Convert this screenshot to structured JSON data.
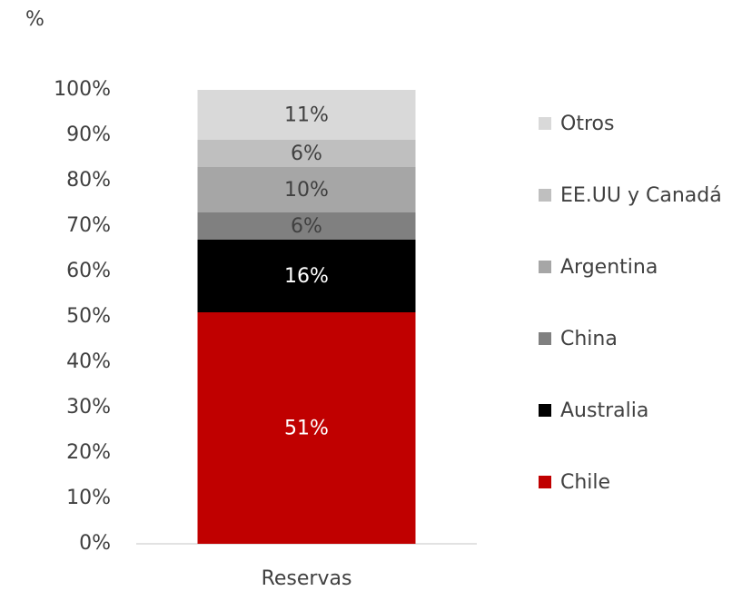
{
  "chart_data": {
    "type": "stacked_bar",
    "y_label": "%",
    "categories": [
      "Reservas"
    ],
    "series": [
      {
        "name": "Chile",
        "color": "#c00000",
        "values": [
          51
        ],
        "value_labels": [
          "51%"
        ]
      },
      {
        "name": "Australia",
        "color": "#000000",
        "values": [
          16
        ],
        "value_labels": [
          "16%"
        ]
      },
      {
        "name": "China",
        "color": "#808080",
        "values": [
          6
        ],
        "value_labels": [
          "6%"
        ]
      },
      {
        "name": "Argentina",
        "color": "#a6a6a6",
        "values": [
          10
        ],
        "value_labels": [
          "10%"
        ]
      },
      {
        "name": "EE.UU y Canadá",
        "color": "#bfbfbf",
        "values": [
          6
        ],
        "value_labels": [
          "6%"
        ]
      },
      {
        "name": "Otros",
        "color": "#d9d9d9",
        "values": [
          11
        ],
        "value_labels": [
          "11%"
        ]
      }
    ],
    "ylim": [
      0,
      100
    ],
    "yticks": [
      {
        "value": 0,
        "label": "0%"
      },
      {
        "value": 10,
        "label": "10%"
      },
      {
        "value": 20,
        "label": "20%"
      },
      {
        "value": 30,
        "label": "30%"
      },
      {
        "value": 40,
        "label": "40%"
      },
      {
        "value": 50,
        "label": "50%"
      },
      {
        "value": 60,
        "label": "60%"
      },
      {
        "value": 70,
        "label": "70%"
      },
      {
        "value": 80,
        "label": "80%"
      },
      {
        "value": 90,
        "label": "90%"
      },
      {
        "value": 100,
        "label": "100%"
      }
    ],
    "legend": "right"
  }
}
